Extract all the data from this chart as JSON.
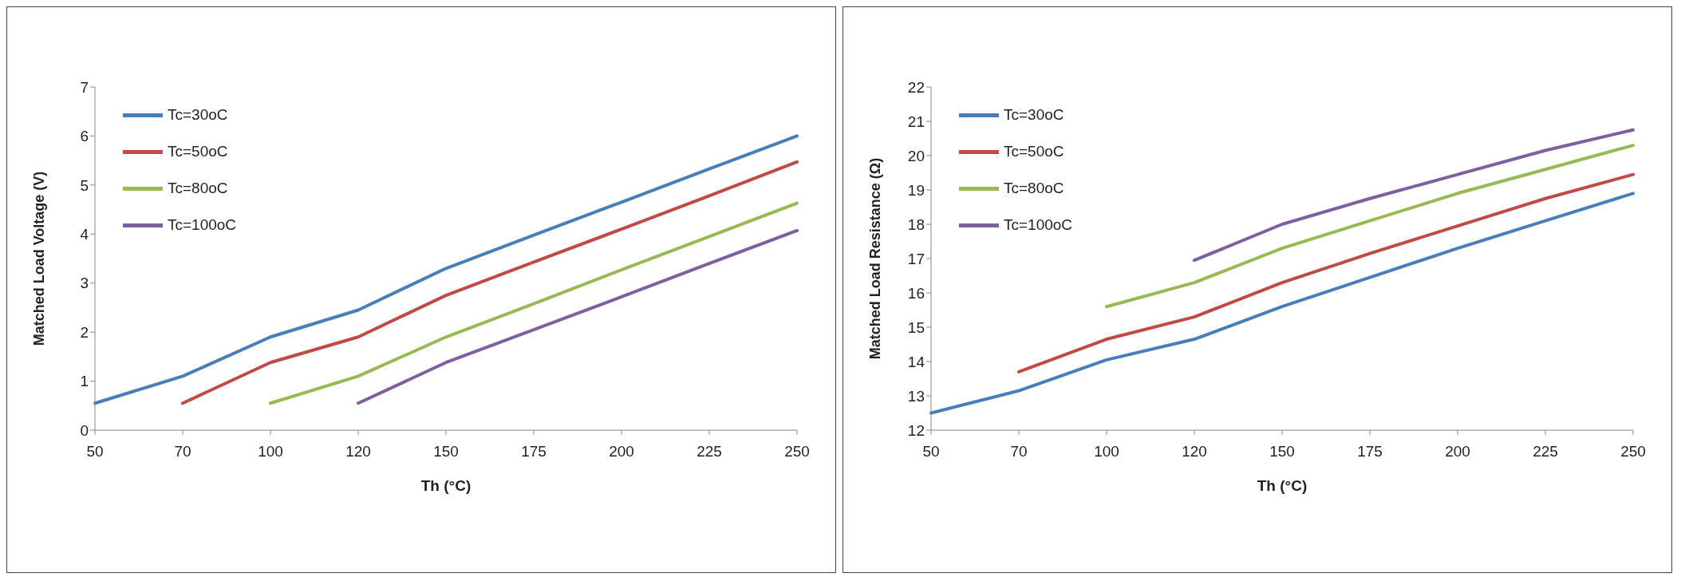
{
  "chart_data": [
    {
      "type": "line",
      "xlabel": "Th (°C)",
      "ylabel": "Matched Load Voltage (V)",
      "categories": [
        "50",
        "70",
        "100",
        "120",
        "150",
        "175",
        "200",
        "225",
        "250"
      ],
      "ylim": [
        0,
        7
      ],
      "yticks": [
        0,
        1,
        2,
        3,
        4,
        5,
        6,
        7
      ],
      "grid": false,
      "legend": "top left",
      "marker": "none",
      "series": [
        {
          "name": "Tc=30oC",
          "color": "#4a7ebb",
          "values": [
            0.55,
            1.1,
            1.9,
            2.45,
            3.3,
            3.98,
            4.65,
            5.33,
            6.0
          ]
        },
        {
          "name": "Tc=50oC",
          "color": "#be4b48",
          "values": [
            null,
            0.55,
            1.38,
            1.9,
            2.75,
            3.43,
            4.1,
            4.78,
            5.47
          ]
        },
        {
          "name": "Tc=80oC",
          "color": "#98b954",
          "values": [
            null,
            null,
            0.55,
            1.1,
            1.9,
            2.58,
            3.27,
            3.95,
            4.63
          ]
        },
        {
          "name": "Tc=100oC",
          "color": "#7d60a0",
          "values": [
            null,
            null,
            null,
            0.55,
            1.38,
            2.05,
            2.72,
            3.4,
            4.07
          ]
        }
      ]
    },
    {
      "type": "line",
      "xlabel": "Th (°C)",
      "ylabel": "Matched Load Resistance  (Ω)",
      "categories": [
        "50",
        "70",
        "100",
        "120",
        "150",
        "175",
        "200",
        "225",
        "250"
      ],
      "ylim": [
        12,
        22
      ],
      "yticks": [
        12,
        13,
        14,
        15,
        16,
        17,
        18,
        19,
        20,
        21,
        22
      ],
      "grid": false,
      "legend": "top left",
      "marker": "none",
      "series": [
        {
          "name": "Tc=30oC",
          "color": "#4a7ebb",
          "values": [
            12.5,
            13.15,
            14.05,
            14.65,
            15.6,
            16.45,
            17.3,
            18.1,
            18.9
          ]
        },
        {
          "name": "Tc=50oC",
          "color": "#be4b48",
          "values": [
            null,
            13.7,
            14.65,
            15.3,
            16.3,
            17.15,
            17.95,
            18.75,
            19.45
          ]
        },
        {
          "name": "Tc=80oC",
          "color": "#98b954",
          "values": [
            null,
            null,
            15.6,
            16.3,
            17.3,
            18.1,
            18.9,
            19.6,
            20.3
          ]
        },
        {
          "name": "Tc=100oC",
          "color": "#7d60a0",
          "values": [
            null,
            null,
            null,
            16.95,
            18.0,
            18.75,
            19.45,
            20.15,
            20.75
          ]
        }
      ]
    }
  ]
}
